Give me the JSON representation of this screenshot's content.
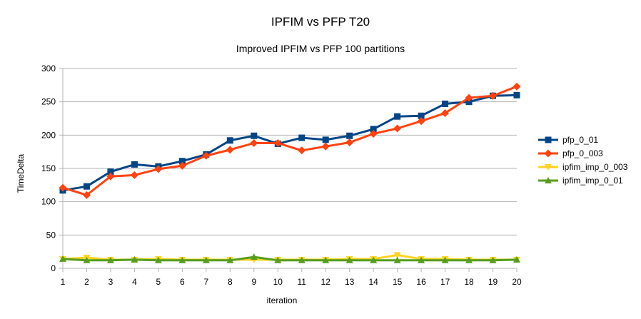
{
  "chart_data": {
    "type": "line",
    "title": "IPFIM vs PFP T20",
    "subtitle": "Improved IPFIM vs PFP 100 partitions",
    "xlabel": "iteration",
    "ylabel": "TimeDelta",
    "ylim": [
      0,
      300
    ],
    "yticks": [
      0,
      50,
      100,
      150,
      200,
      250,
      300
    ],
    "grid": "horizontal",
    "legend_position": "right",
    "x": [
      1,
      2,
      3,
      4,
      5,
      6,
      7,
      8,
      9,
      10,
      11,
      12,
      13,
      14,
      15,
      16,
      17,
      18,
      19,
      20
    ],
    "series": [
      {
        "name": "pfp_0_01",
        "color": "#004586",
        "marker": "square",
        "values": [
          117,
          123,
          145,
          156,
          153,
          161,
          171,
          192,
          199,
          187,
          196,
          193,
          199,
          209,
          228,
          229,
          247,
          250,
          259,
          260
        ]
      },
      {
        "name": "pfp_0_003",
        "color": "#ff420e",
        "marker": "diamond",
        "values": [
          121,
          110,
          138,
          140,
          149,
          154,
          169,
          178,
          188,
          188,
          177,
          183,
          189,
          202,
          210,
          221,
          233,
          256,
          259,
          273
        ]
      },
      {
        "name": "ipfim_imp_0_003",
        "color": "#ffd320",
        "marker": "triangle-down",
        "values": [
          14,
          16,
          13,
          13,
          14,
          13,
          13,
          13,
          13,
          13,
          13,
          13,
          14,
          14,
          20,
          14,
          14,
          13,
          13,
          13
        ]
      },
      {
        "name": "ipfim_imp_0_01",
        "color": "#579d1c",
        "marker": "triangle-up",
        "values": [
          14,
          12,
          12,
          13,
          12,
          12,
          12,
          12,
          17,
          12,
          12,
          12,
          12,
          12,
          12,
          12,
          12,
          12,
          12,
          13
        ]
      }
    ]
  }
}
